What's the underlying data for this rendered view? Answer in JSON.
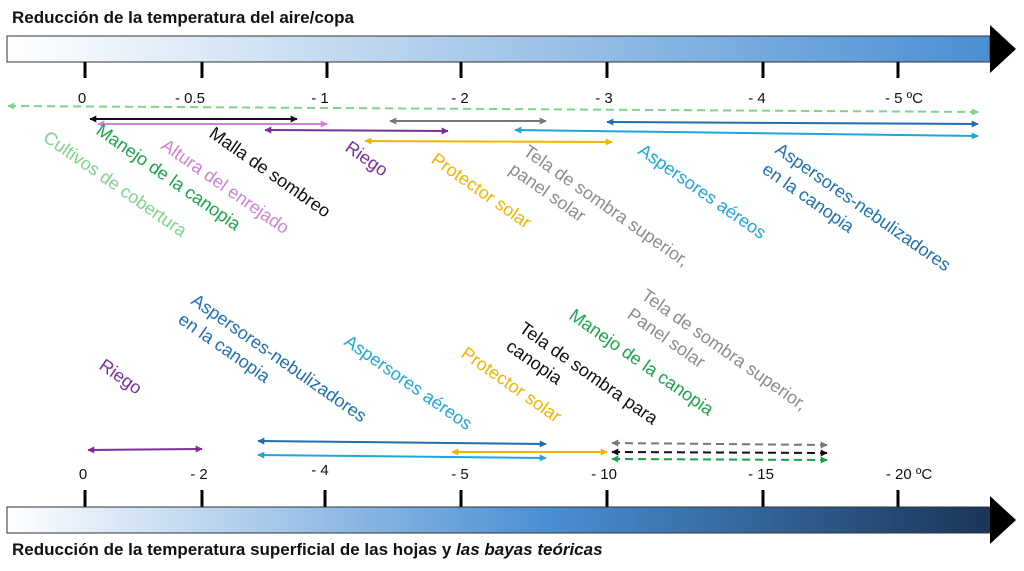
{
  "top": {
    "title": "Reducción de la temperatura del aire/copa",
    "ticks": [
      "0",
      "- 0.5",
      "- 1",
      "- 2",
      "- 3",
      "- 4",
      "- 5 ºC"
    ],
    "labels": [
      {
        "text": "Cultivos de cobertura",
        "color": "#7fd38a"
      },
      {
        "text": "Manejo de la canopia",
        "color": "#1aa34a"
      },
      {
        "text": "Altura del enrejado",
        "color": "#d47fd4"
      },
      {
        "text": "Malla de sombreo",
        "color": "#111111"
      },
      {
        "text": "Riego",
        "color": "#7a2e9a"
      },
      {
        "text": "Protector solar",
        "color": "#f0b400"
      },
      {
        "text": "Tela de sombra superior,",
        "color": "#8c8c8c"
      },
      {
        "text": "panel solar",
        "color": "#8c8c8c"
      },
      {
        "text": "Aspersores aéreos",
        "color": "#1ea6dc"
      },
      {
        "text": "Aspersores-nebulizadores",
        "color": "#1f6fb2"
      },
      {
        "text": "en la canopia",
        "color": "#1f6fb2"
      }
    ]
  },
  "bottom": {
    "title_main": "Reducción de la temperatura superficial de las hojas y ",
    "title_italic": "las bayas teóricas",
    "ticks": [
      "0",
      "- 2",
      "- 4",
      "- 5",
      "- 10",
      "- 15",
      "- 20 ºC"
    ],
    "labels": [
      {
        "text": "Riego",
        "color": "#7a2e9a"
      },
      {
        "text": "Aspersores-nebulizadores",
        "color": "#1f6fb2"
      },
      {
        "text": "en la canopia",
        "color": "#1f6fb2"
      },
      {
        "text": "Aspersores aéreos",
        "color": "#1ea6dc"
      },
      {
        "text": "Protector solar",
        "color": "#f0b400"
      },
      {
        "text": "Tela de sombra para",
        "color": "#111111"
      },
      {
        "text": "canopia",
        "color": "#111111"
      },
      {
        "text": "Manejo de la canopia",
        "color": "#1aa34a"
      },
      {
        "text": "Tela de sombra superior,",
        "color": "#8c8c8c"
      },
      {
        "text": "Panel solar",
        "color": "#8c8c8c"
      }
    ]
  }
}
